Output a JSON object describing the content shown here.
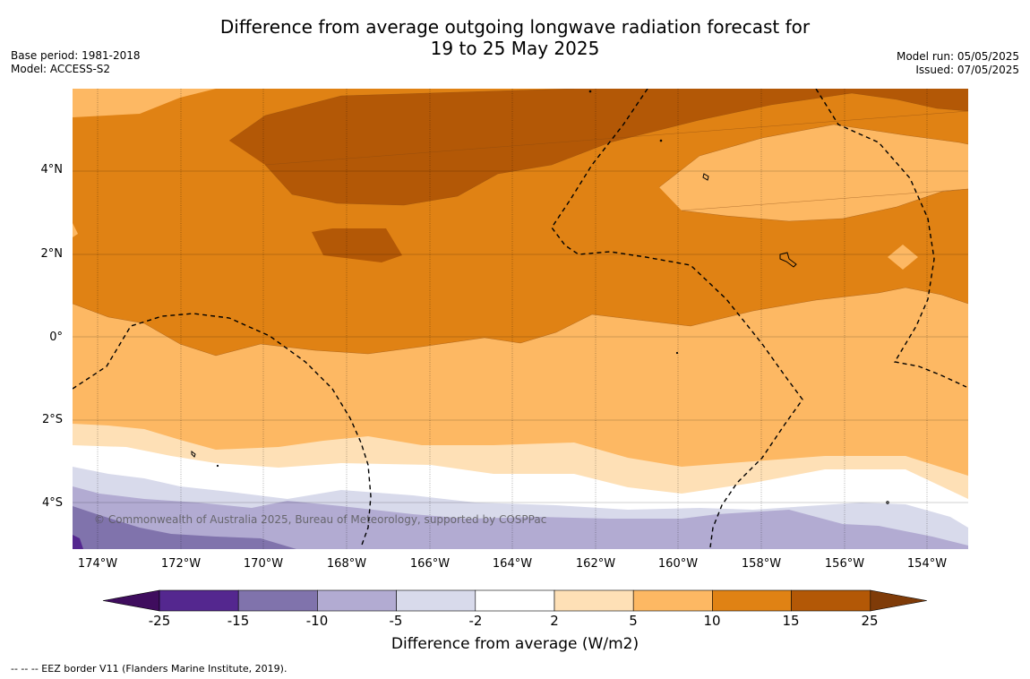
{
  "title": {
    "line1": "Difference from average outgoing longwave radiation forecast for",
    "line2": "19 to 25 May 2025"
  },
  "meta_left": {
    "base_period": "Base period: 1981-2018",
    "model": "Model: ACCESS-S2"
  },
  "meta_right": {
    "model_run": "Model run: 05/05/2025",
    "issued": "Issued: 07/05/2025"
  },
  "map": {
    "lat_labels": [
      "4°N",
      "2°N",
      "0°",
      "2°S",
      "4°S"
    ],
    "lon_labels": [
      "174°W",
      "172°W",
      "170°W",
      "168°W",
      "166°W",
      "164°W",
      "162°W",
      "160°W",
      "158°W",
      "156°W",
      "154°W"
    ],
    "copyright": "© Commonwealth of Australia 2025, Bureau of Meteorology, supported by COSPPac"
  },
  "colorbar": {
    "ticks": [
      "-25",
      "-15",
      "-10",
      "-5",
      "-2",
      "2",
      "5",
      "10",
      "15",
      "25"
    ],
    "colors": [
      "#3f0d5e",
      "#54278f",
      "#8073ac",
      "#b2abd2",
      "#d8daeb",
      "#ffffff",
      "#fee0b6",
      "#fdb863",
      "#e08214",
      "#b35806",
      "#7f3b08"
    ],
    "title": "Difference from average (W/m2)"
  },
  "footnote": "--  --  -- EEZ border V11 (Flanders Marine Institute, 2019)."
}
